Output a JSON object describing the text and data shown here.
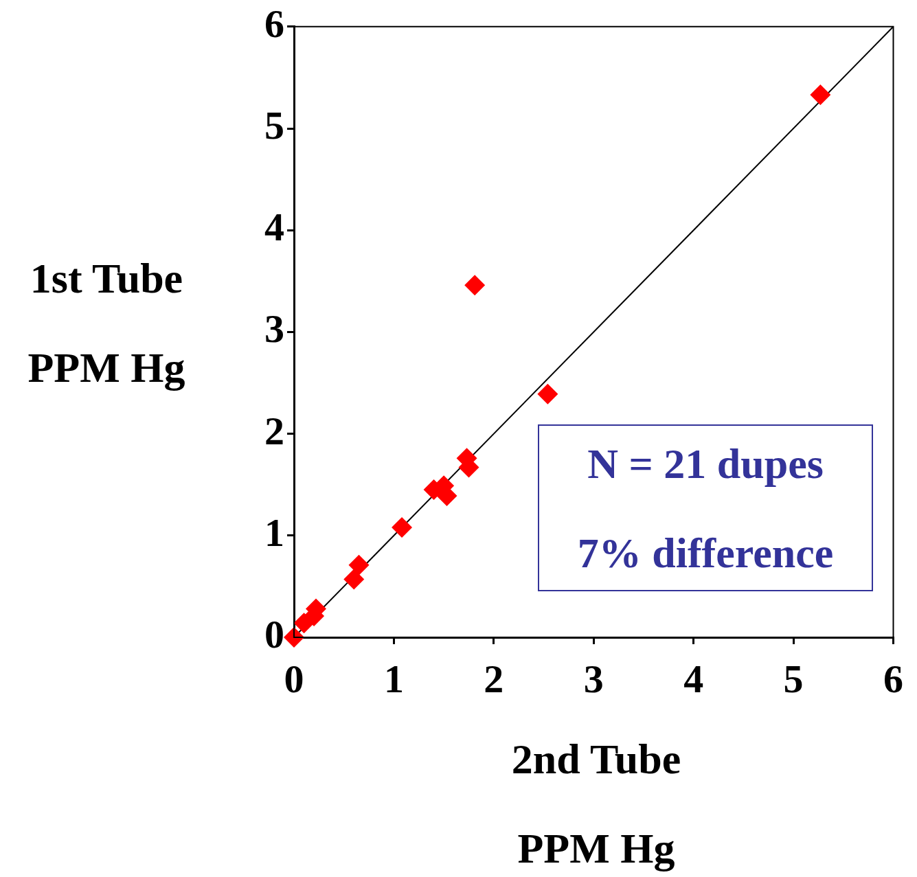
{
  "chart_data": {
    "type": "scatter",
    "xlabel": "2nd Tube PPM Hg",
    "ylabel": "1st Tube PPM Hg",
    "xlim": [
      0,
      6
    ],
    "ylim": [
      0,
      6
    ],
    "xticks": [
      0,
      1,
      2,
      3,
      4,
      5,
      6
    ],
    "yticks": [
      0,
      1,
      2,
      3,
      4,
      5,
      6
    ],
    "grid": false,
    "annotations": [
      "N = 21 dupes",
      "7% difference"
    ],
    "series": [
      {
        "color": "#ff0000",
        "marker": "diamond",
        "x": [
          5.27,
          1.81,
          2.54,
          1.73,
          1.75,
          1.4,
          1.5,
          1.53,
          1.08,
          0.65,
          0.6,
          0.22,
          0.2,
          0.1,
          0
        ],
        "values": [
          5.33,
          3.46,
          2.39,
          1.76,
          1.67,
          1.45,
          1.49,
          1.39,
          1.08,
          0.71,
          0.57,
          0.28,
          0.21,
          0.14,
          0
        ]
      },
      {
        "type": "line",
        "color": "#000000",
        "marker": "none",
        "x": [
          0,
          6
        ],
        "values": [
          0,
          6
        ]
      }
    ]
  }
}
